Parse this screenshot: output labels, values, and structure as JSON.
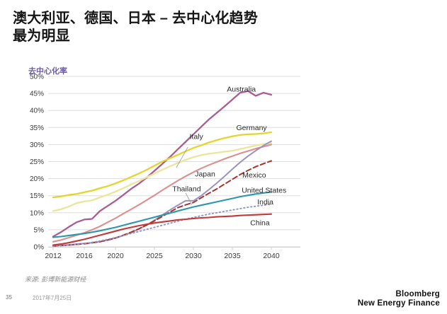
{
  "slide": {
    "title_line1": "澳大利亚、德国、日本 – 去中心化趋势",
    "title_line2": "最为明显",
    "footer": {
      "source": "来源: 彭博新能源财经",
      "page_number": "35",
      "date": "2017年7月25日",
      "logo_line1": "Bloomberg",
      "logo_line2": "New Energy Finance"
    }
  },
  "colors": {
    "grid": "#dedede",
    "axis_line": "#cfcfcf",
    "axis_text": "#3a3a3a",
    "annotation_text": "#2b2b2b",
    "callout_line": "#999999",
    "chart_title": "#6b5ca5"
  },
  "chart_data": {
    "type": "line",
    "title": "去中心化率",
    "xlabel": "",
    "ylabel": "去中心化率",
    "xlim": [
      2012,
      2040
    ],
    "ylim": [
      0,
      50
    ],
    "grid": true,
    "legend_position": "inline-labels",
    "x_ticks": [
      {
        "value": 2012,
        "label": "2012"
      },
      {
        "value": 2016,
        "label": "2016"
      },
      {
        "value": 2020,
        "label": "2020"
      },
      {
        "value": 2025,
        "label": "2025"
      },
      {
        "value": 2030,
        "label": "2030"
      },
      {
        "value": 2035,
        "label": "2035"
      },
      {
        "value": 2040,
        "label": "2040"
      }
    ],
    "y_ticks": [
      {
        "value": 0,
        "label": "0%"
      },
      {
        "value": 5,
        "label": "5%"
      },
      {
        "value": 10,
        "label": "10%"
      },
      {
        "value": 15,
        "label": "15%"
      },
      {
        "value": 20,
        "label": "20%"
      },
      {
        "value": 25,
        "label": "25%"
      },
      {
        "value": 30,
        "label": "30%"
      },
      {
        "value": 35,
        "label": "35%"
      },
      {
        "value": 40,
        "label": "40%"
      },
      {
        "value": 45,
        "label": "45%"
      },
      {
        "value": 50,
        "label": "50%"
      }
    ],
    "series": [
      {
        "name": "Australia",
        "color": "#a85e92",
        "style": "solid",
        "width": 2.3,
        "label_at": [
          2034.3,
          45.5
        ],
        "values": [
          [
            2012,
            3
          ],
          [
            2013,
            4.3
          ],
          [
            2014,
            5.8
          ],
          [
            2015,
            7.2
          ],
          [
            2016,
            8
          ],
          [
            2017,
            8.2
          ],
          [
            2018,
            10.5
          ],
          [
            2019,
            12
          ],
          [
            2020,
            13.5
          ],
          [
            2021,
            15.2
          ],
          [
            2022,
            17
          ],
          [
            2023,
            18.5
          ],
          [
            2024,
            20.3
          ],
          [
            2025,
            22.3
          ],
          [
            2026,
            24.3
          ],
          [
            2027,
            26.4
          ],
          [
            2028,
            28.6
          ],
          [
            2029,
            30.8
          ],
          [
            2030,
            33
          ],
          [
            2031,
            35.2
          ],
          [
            2032,
            37.4
          ],
          [
            2033,
            39.3
          ],
          [
            2034,
            41.2
          ],
          [
            2035,
            43.2
          ],
          [
            2036,
            45.2
          ],
          [
            2037,
            45.7
          ],
          [
            2038,
            44.3
          ],
          [
            2039,
            45.2
          ],
          [
            2040,
            44.6
          ]
        ]
      },
      {
        "name": "Germany",
        "color": "#e2d52d",
        "style": "solid",
        "width": 2.3,
        "label_at": [
          2035.5,
          34.2
        ],
        "values": [
          [
            2012,
            14.5
          ],
          [
            2013,
            14.8
          ],
          [
            2014,
            15.2
          ],
          [
            2015,
            15.5
          ],
          [
            2016,
            16
          ],
          [
            2017,
            16.5
          ],
          [
            2018,
            17.2
          ],
          [
            2019,
            17.8
          ],
          [
            2020,
            18.6
          ],
          [
            2021,
            19.5
          ],
          [
            2022,
            20.5
          ],
          [
            2023,
            21.5
          ],
          [
            2024,
            22.6
          ],
          [
            2025,
            23.8
          ],
          [
            2026,
            25
          ],
          [
            2027,
            26
          ],
          [
            2028,
            27
          ],
          [
            2029,
            28
          ],
          [
            2030,
            29
          ],
          [
            2031,
            29.8
          ],
          [
            2032,
            30.6
          ],
          [
            2033,
            31.3
          ],
          [
            2034,
            31.9
          ],
          [
            2035,
            32.4
          ],
          [
            2036,
            32.8
          ],
          [
            2037,
            33
          ],
          [
            2038,
            33.1
          ],
          [
            2039,
            33.3
          ],
          [
            2040,
            33.6
          ]
        ]
      },
      {
        "name": "Italy",
        "color": "#ece59c",
        "style": "solid",
        "width": 2.3,
        "label_at": [
          2029.5,
          31.6
        ],
        "callout": [
          [
            2029.3,
            29.3
          ],
          [
            2027.8,
            23.2
          ]
        ],
        "values": [
          [
            2012,
            10.5
          ],
          [
            2013,
            11
          ],
          [
            2014,
            11.8
          ],
          [
            2015,
            12.8
          ],
          [
            2016,
            13.3
          ],
          [
            2017,
            13.6
          ],
          [
            2018,
            14.5
          ],
          [
            2019,
            15.3
          ],
          [
            2020,
            16.2
          ],
          [
            2021,
            17.2
          ],
          [
            2022,
            18.3
          ],
          [
            2023,
            19.3
          ],
          [
            2024,
            20.4
          ],
          [
            2025,
            21.5
          ],
          [
            2026,
            22.6
          ],
          [
            2027,
            23.6
          ],
          [
            2028,
            24.6
          ],
          [
            2029,
            25.5
          ],
          [
            2030,
            26.3
          ],
          [
            2031,
            26.9
          ],
          [
            2032,
            27.3
          ],
          [
            2033,
            27.6
          ],
          [
            2034,
            27.9
          ],
          [
            2035,
            28.2
          ],
          [
            2036,
            28.7
          ],
          [
            2037,
            29.2
          ],
          [
            2038,
            29.7
          ],
          [
            2039,
            30.1
          ],
          [
            2040,
            30.4
          ]
        ]
      },
      {
        "name": "Japan",
        "color": "#de8e8e",
        "style": "solid",
        "width": 2.1,
        "label_at": [
          2030.2,
          20.6
        ],
        "values": [
          [
            2012,
            1.5
          ],
          [
            2013,
            2
          ],
          [
            2014,
            2.7
          ],
          [
            2015,
            3.4
          ],
          [
            2016,
            4.1
          ],
          [
            2017,
            5
          ],
          [
            2018,
            6
          ],
          [
            2019,
            7.2
          ],
          [
            2020,
            8.4
          ],
          [
            2021,
            9.7
          ],
          [
            2022,
            11
          ],
          [
            2023,
            12.3
          ],
          [
            2024,
            13.7
          ],
          [
            2025,
            15.1
          ],
          [
            2026,
            16.6
          ],
          [
            2027,
            18
          ],
          [
            2028,
            19.4
          ],
          [
            2029,
            20.7
          ],
          [
            2030,
            21.9
          ],
          [
            2031,
            23
          ],
          [
            2032,
            24
          ],
          [
            2033,
            24.9
          ],
          [
            2034,
            25.8
          ],
          [
            2035,
            26.6
          ],
          [
            2036,
            27.4
          ],
          [
            2037,
            28.1
          ],
          [
            2038,
            28.8
          ],
          [
            2039,
            29.4
          ],
          [
            2040,
            30
          ]
        ]
      },
      {
        "name": "Mexico",
        "color": "#9d91bd",
        "style": "solid",
        "width": 2.0,
        "label_at": [
          2036.3,
          20.3
        ],
        "values": [
          [
            2012,
            0.3
          ],
          [
            2014,
            0.6
          ],
          [
            2016,
            1
          ],
          [
            2017,
            1.2
          ],
          [
            2018,
            1.5
          ],
          [
            2019,
            2
          ],
          [
            2020,
            2.6
          ],
          [
            2021,
            3.3
          ],
          [
            2022,
            4.2
          ],
          [
            2023,
            5.2
          ],
          [
            2024,
            6.4
          ],
          [
            2025,
            7.8
          ],
          [
            2026,
            9.3
          ],
          [
            2027,
            10.8
          ],
          [
            2028,
            12.2
          ],
          [
            2029,
            13.5
          ],
          [
            2030,
            13.5
          ],
          [
            2031,
            15
          ],
          [
            2032,
            16.8
          ],
          [
            2033,
            18.7
          ],
          [
            2034,
            20.7
          ],
          [
            2035,
            22.8
          ],
          [
            2036,
            24.8
          ],
          [
            2037,
            26.6
          ],
          [
            2038,
            28.2
          ],
          [
            2039,
            29.7
          ],
          [
            2040,
            31
          ]
        ]
      },
      {
        "name": "Thailand",
        "color": "#a8342e",
        "style": "dashed",
        "width": 2.0,
        "label_at": [
          2027.3,
          16.3
        ],
        "callout": [
          [
            2029.0,
            15.8
          ],
          [
            2029.8,
            12.4
          ]
        ],
        "values": [
          [
            2012,
            0.2
          ],
          [
            2014,
            0.5
          ],
          [
            2016,
            0.9
          ],
          [
            2018,
            1.5
          ],
          [
            2019,
            2
          ],
          [
            2020,
            2.6
          ],
          [
            2021,
            3.4
          ],
          [
            2022,
            4.3
          ],
          [
            2023,
            5.3
          ],
          [
            2024,
            6.4
          ],
          [
            2025,
            7.6
          ],
          [
            2026,
            8.9
          ],
          [
            2027,
            10.2
          ],
          [
            2028,
            11.5
          ],
          [
            2029,
            12.3
          ],
          [
            2030,
            13
          ],
          [
            2031,
            14.4
          ],
          [
            2032,
            15.7
          ],
          [
            2033,
            17
          ],
          [
            2034,
            18.4
          ],
          [
            2035,
            19.8
          ],
          [
            2036,
            21.2
          ],
          [
            2037,
            22.4
          ],
          [
            2038,
            23.5
          ],
          [
            2039,
            24.4
          ],
          [
            2040,
            25.2
          ]
        ]
      },
      {
        "name": "United States",
        "color": "#2b97a8",
        "style": "solid",
        "width": 2.1,
        "label_at": [
          2036.2,
          15.9
        ],
        "values": [
          [
            2012,
            2.8
          ],
          [
            2013,
            3
          ],
          [
            2014,
            3.3
          ],
          [
            2015,
            3.6
          ],
          [
            2016,
            3.9
          ],
          [
            2017,
            4.3
          ],
          [
            2018,
            4.7
          ],
          [
            2019,
            5.2
          ],
          [
            2020,
            5.7
          ],
          [
            2021,
            6.3
          ],
          [
            2022,
            6.9
          ],
          [
            2023,
            7.5
          ],
          [
            2024,
            8.1
          ],
          [
            2025,
            8.7
          ],
          [
            2026,
            9.3
          ],
          [
            2027,
            9.9
          ],
          [
            2028,
            10.5
          ],
          [
            2029,
            11.1
          ],
          [
            2030,
            11.7
          ],
          [
            2031,
            12.2
          ],
          [
            2032,
            12.7
          ],
          [
            2033,
            13.2
          ],
          [
            2034,
            13.7
          ],
          [
            2035,
            14.2
          ],
          [
            2036,
            14.7
          ],
          [
            2037,
            15.1
          ],
          [
            2038,
            15.5
          ],
          [
            2039,
            15.8
          ],
          [
            2040,
            16.1
          ]
        ]
      },
      {
        "name": "India",
        "color": "#8e93c8",
        "style": "dotted",
        "width": 1.9,
        "label_at": [
          2038.2,
          12.4
        ],
        "values": [
          [
            2012,
            0.2
          ],
          [
            2013,
            0.3
          ],
          [
            2014,
            0.5
          ],
          [
            2015,
            0.7
          ],
          [
            2016,
            1
          ],
          [
            2017,
            1.3
          ],
          [
            2018,
            1.7
          ],
          [
            2019,
            2.2
          ],
          [
            2020,
            2.7
          ],
          [
            2021,
            3.3
          ],
          [
            2022,
            3.9
          ],
          [
            2023,
            4.5
          ],
          [
            2024,
            5.1
          ],
          [
            2025,
            5.7
          ],
          [
            2026,
            6.3
          ],
          [
            2027,
            6.9
          ],
          [
            2028,
            7.5
          ],
          [
            2029,
            8.1
          ],
          [
            2030,
            8.6
          ],
          [
            2031,
            9.1
          ],
          [
            2032,
            9.6
          ],
          [
            2033,
            10
          ],
          [
            2034,
            10.4
          ],
          [
            2035,
            10.8
          ],
          [
            2036,
            11.2
          ],
          [
            2037,
            11.6
          ],
          [
            2038,
            11.9
          ],
          [
            2039,
            12.2
          ],
          [
            2040,
            12.5
          ]
        ]
      },
      {
        "name": "China",
        "color": "#c0393b",
        "style": "solid",
        "width": 2.1,
        "label_at": [
          2037.3,
          6.3
        ],
        "values": [
          [
            2012,
            0.5
          ],
          [
            2013,
            0.8
          ],
          [
            2014,
            1.2
          ],
          [
            2015,
            1.7
          ],
          [
            2016,
            2.2
          ],
          [
            2017,
            2.8
          ],
          [
            2018,
            3.4
          ],
          [
            2019,
            4
          ],
          [
            2020,
            4.6
          ],
          [
            2021,
            5.2
          ],
          [
            2022,
            5.7
          ],
          [
            2023,
            6.2
          ],
          [
            2024,
            6.6
          ],
          [
            2025,
            7
          ],
          [
            2026,
            7.3
          ],
          [
            2027,
            7.6
          ],
          [
            2028,
            7.9
          ],
          [
            2029,
            8.1
          ],
          [
            2030,
            8.3
          ],
          [
            2031,
            8.5
          ],
          [
            2032,
            8.6
          ],
          [
            2033,
            8.8
          ],
          [
            2034,
            8.9
          ],
          [
            2035,
            9
          ],
          [
            2036,
            9.2
          ],
          [
            2037,
            9.3
          ],
          [
            2038,
            9.4
          ],
          [
            2039,
            9.5
          ],
          [
            2040,
            9.6
          ]
        ]
      }
    ]
  }
}
